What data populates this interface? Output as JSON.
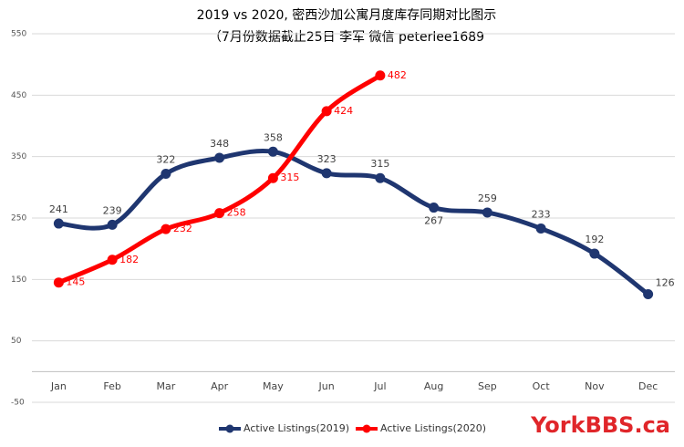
{
  "chart_data": {
    "type": "line",
    "title": "2019 vs 2020, 密西沙加公寓月度库存同期对比图示",
    "subtitle": "（7月份数据截止25日 李军  微信 peterlee1689",
    "annotation": "YorkBBS.ca",
    "categories": [
      "Jan",
      "Feb",
      "Mar",
      "Apr",
      "May",
      "Jun",
      "Jul",
      "Aug",
      "Sep",
      "Oct",
      "Nov",
      "Dec"
    ],
    "series": [
      {
        "name": "Active Listings(2019)",
        "color": "#1f3670",
        "values": [
          241,
          239,
          322,
          348,
          358,
          323,
          315,
          267,
          259,
          233,
          192,
          126
        ]
      },
      {
        "name": "Active Listings(2020)",
        "color": "#ff0000",
        "values": [
          145,
          182,
          232,
          258,
          315,
          424,
          482,
          null,
          null,
          null,
          null,
          null
        ]
      }
    ],
    "ylim": [
      -50,
      550
    ],
    "yticks": [
      -50,
      50,
      150,
      250,
      350,
      450,
      550
    ],
    "grid": true,
    "legend": "bottom"
  }
}
